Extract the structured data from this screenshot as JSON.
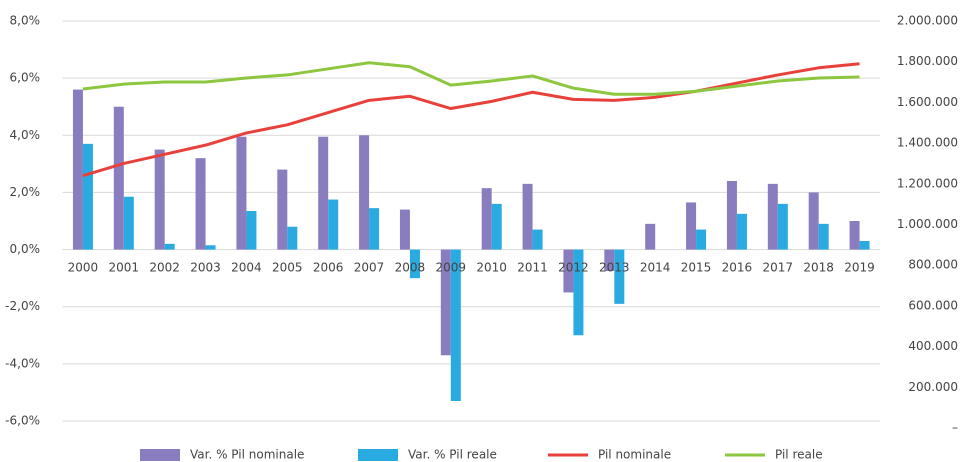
{
  "chart_data": {
    "type": "bar",
    "categories": [
      "2000",
      "2001",
      "2002",
      "2003",
      "2004",
      "2005",
      "2006",
      "2007",
      "2008",
      "2009",
      "2010",
      "2011",
      "2012",
      "2013",
      "2014",
      "2015",
      "2016",
      "2017",
      "2018",
      "2019"
    ],
    "series": [
      {
        "name": "Var. % Pil nominale",
        "type": "bar",
        "color": "#8a7dbf",
        "values": [
          5.6,
          5.0,
          3.5,
          3.2,
          3.95,
          2.8,
          3.95,
          4.0,
          1.4,
          -3.7,
          2.15,
          2.3,
          -1.5,
          -0.75,
          0.9,
          1.65,
          2.4,
          2.3,
          2.0,
          1.0
        ]
      },
      {
        "name": "Var. % Pil reale",
        "type": "bar",
        "color": "#29abe2",
        "values": [
          3.7,
          1.85,
          0.2,
          0.15,
          1.35,
          0.8,
          1.75,
          1.45,
          -1.0,
          -5.3,
          1.6,
          0.7,
          -3.0,
          -1.9,
          0.0,
          0.7,
          1.25,
          1.6,
          0.9,
          0.3
        ]
      },
      {
        "name": "Pil nominale",
        "type": "line",
        "axis": "y2",
        "color": "#e8413c",
        "values": [
          1240000,
          1300000,
          1345000,
          1390000,
          1450000,
          1490000,
          1550000,
          1610000,
          1630000,
          1570000,
          1605000,
          1650000,
          1615000,
          1610000,
          1625000,
          1655000,
          1695000,
          1735000,
          1770000,
          1790000
        ]
      },
      {
        "name": "Pil reale",
        "type": "line",
        "axis": "y2",
        "color": "#8dc63f",
        "values": [
          1666000,
          1690000,
          1700000,
          1700000,
          1720000,
          1735000,
          1765000,
          1795000,
          1775000,
          1685000,
          1705000,
          1730000,
          1670000,
          1640000,
          1640000,
          1655000,
          1680000,
          1705000,
          1720000,
          1725000
        ]
      }
    ],
    "ylim": [
      -6,
      8
    ],
    "yticks": [
      {
        "value": -6,
        "label": "-6,0%"
      },
      {
        "value": -4,
        "label": "-4,0%"
      },
      {
        "value": -2,
        "label": "-2,0%"
      },
      {
        "value": 0,
        "label": "0,0%"
      },
      {
        "value": 2,
        "label": "2,0%"
      },
      {
        "value": 4,
        "label": "4,0%"
      },
      {
        "value": 6,
        "label": "6,0%"
      },
      {
        "value": 8,
        "label": "8,0%"
      }
    ],
    "y2lim": [
      0,
      2000000
    ],
    "y2ticks": [
      {
        "value": 0,
        "label": "–"
      },
      {
        "value": 200000,
        "label": "200.000"
      },
      {
        "value": 400000,
        "label": "400.000"
      },
      {
        "value": 600000,
        "label": "600.000"
      },
      {
        "value": 800000,
        "label": "800.000"
      },
      {
        "value": 1000000,
        "label": "1.000.000"
      },
      {
        "value": 1200000,
        "label": "1.200.000"
      },
      {
        "value": 1400000,
        "label": "1.400.000"
      },
      {
        "value": 1600000,
        "label": "1.600.000"
      },
      {
        "value": 1800000,
        "label": "1.800.000"
      },
      {
        "value": 2000000,
        "label": "2.000.000"
      }
    ],
    "grid": true,
    "legend": "bottom"
  }
}
